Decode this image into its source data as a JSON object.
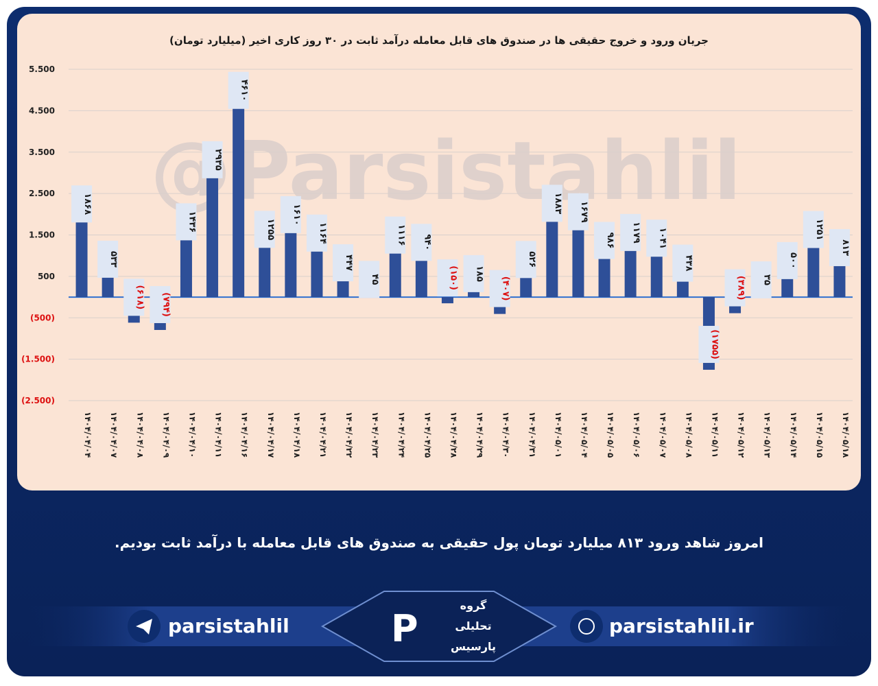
{
  "chart_data": {
    "type": "bar",
    "title": "جریان ورود و خروج حقیقی ها در صندوق های قابل معامله درآمد ثابت در ۳۰ روز کاری اخیر (میلیارد تومان)",
    "categories": [
      "۱۴۰۴/۰۴/۰۴",
      "۱۴۰۴/۰۴/۰۷",
      "۱۴۰۴/۰۴/۰۸",
      "۱۴۰۴/۰۴/۰۹",
      "۱۴۰۴/۰۴/۱۰",
      "۱۴۰۴/۰۴/۱۱",
      "۱۴۰۴/۰۴/۱۶",
      "۱۴۰۴/۰۴/۱۷",
      "۱۴۰۴/۰۴/۱۸",
      "۱۴۰۴/۰۴/۲۱",
      "۱۴۰۴/۰۴/۲۲",
      "۱۴۰۴/۰۴/۲۳",
      "۱۴۰۴/۰۴/۲۴",
      "۱۴۰۴/۰۴/۲۵",
      "۱۴۰۴/۰۴/۲۸",
      "۱۴۰۴/۰۴/۲۹",
      "۱۴۰۴/۰۴/۳۰",
      "۱۴۰۴/۰۴/۳۱",
      "۱۴۰۴/۰۵/۰۱",
      "۱۴۰۴/۰۵/۰۴",
      "۱۴۰۴/۰۵/۰۵",
      "۱۴۰۴/۰۵/۰۶",
      "۱۴۰۴/۰۵/۰۷",
      "۱۴۰۴/۰۵/۰۸",
      "۱۴۰۴/۰۵/۱۱",
      "۱۴۰۴/۰۵/۱۲",
      "۱۴۰۴/۰۵/۱۳",
      "۱۴۰۴/۰۵/۱۴",
      "۱۴۰۴/۰۵/۱۵",
      "۱۴۰۴/۰۵/۱۸"
    ],
    "values": [
      1868,
      533,
      -618,
      -794,
      1436,
      2935,
      4610,
      1255,
      1610,
      1164,
      447,
      45,
      1116,
      940,
      -150,
      185,
      -407,
      526,
      1883,
      1679,
      986,
      1179,
      1041,
      438,
      -1755,
      -389,
      35,
      500,
      1251,
      813
    ],
    "value_labels": [
      "۱۸۶۸",
      "۵۳۳",
      "(۶۱۸)",
      "(۷۹۴)",
      "۱۴۳۶",
      "۲۹۳۵",
      "۴۶۱۰",
      "۱۲۵۵",
      "۱۶۱۰",
      "۱۱۶۴",
      "۴۴۷",
      "۴۵",
      "۱۱۱۶",
      "۹۴۰",
      "(۱۵۰)",
      "۱۸۵",
      "(۴۰۷)",
      "۵۲۶",
      "۱۸۸۳",
      "۱۶۷۹",
      "۹۸۶",
      "۱۱۷۹",
      "۱۰۴۱",
      "۴۳۸",
      "(۱۷۵۵)",
      "(۳۸۹)",
      "۳۵",
      "۵۰۰",
      "۱۲۵۱",
      "۸۱۳"
    ],
    "color": "#2e4f98",
    "ylim": [
      -2500,
      5500
    ],
    "yticks": [
      {
        "value": 5500,
        "label": "5.500"
      },
      {
        "value": 4500,
        "label": "4.500"
      },
      {
        "value": 3500,
        "label": "3.500"
      },
      {
        "value": 2500,
        "label": "2.500"
      },
      {
        "value": 1500,
        "label": "1.500"
      },
      500,
      {
        "value": -500,
        "label": "(500)"
      },
      {
        "value": -1500,
        "label": "(1.500)"
      },
      {
        "value": -2500,
        "label": "(2.500)"
      }
    ],
    "grid": true
  },
  "watermark": "@Parsistahlil",
  "caption": "امروز شاهد ورود ۸۱۳ میلیارد تومان پول حقیقی به صندوق های قابل معامله با درآمد ثابت بودیم.",
  "footer": {
    "telegram": "parsistahlil",
    "website": "parsistahlil.ir",
    "logo": [
      "گروه",
      "تحلیلی",
      "پارسیس"
    ]
  }
}
